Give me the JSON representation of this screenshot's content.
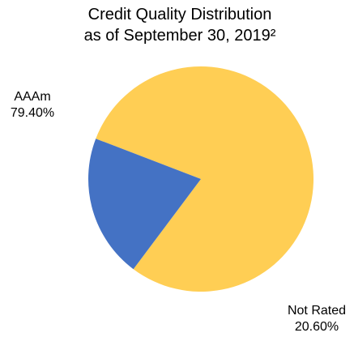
{
  "chart_data": {
    "type": "pie",
    "title": "Credit Quality Distribution",
    "subtitle": "as of September 30, 2019²",
    "slices": [
      {
        "name": "AAAm",
        "value": 79.4,
        "label": "79.40%",
        "color": "#FFCE54"
      },
      {
        "name": "Not Rated",
        "value": 20.6,
        "label": "20.60%",
        "color": "#4472C4"
      }
    ]
  }
}
